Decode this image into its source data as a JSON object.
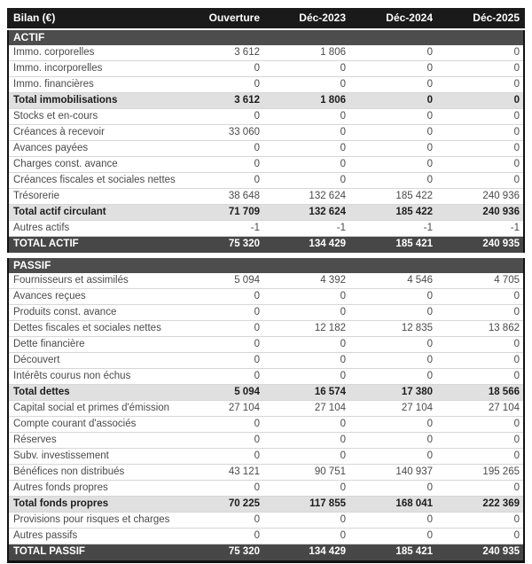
{
  "colors": {
    "header_bg": "#1a1a1a",
    "section_bg": "#4d4d4d",
    "total_bg": "#474747",
    "subtotal_bg": "#e0e0e0",
    "row_border": "#d6d6d6",
    "text": "#4a4a4a"
  },
  "table": {
    "title": "Bilan (€)",
    "columns": [
      "Ouverture",
      "Déc-2023",
      "Déc-2024",
      "Déc-2025"
    ],
    "sections": [
      {
        "name": "ACTIF",
        "rows": [
          {
            "label": "Immo. corporelles",
            "type": "data",
            "values": [
              "3 612",
              "1 806",
              "0",
              "0"
            ]
          },
          {
            "label": "Immo. incorporelles",
            "type": "data",
            "values": [
              "0",
              "0",
              "0",
              "0"
            ]
          },
          {
            "label": "Immo. financières",
            "type": "data",
            "values": [
              "0",
              "0",
              "0",
              "0"
            ]
          },
          {
            "label": "Total immobilisations",
            "type": "subtotal",
            "values": [
              "3 612",
              "1 806",
              "0",
              "0"
            ]
          },
          {
            "label": "Stocks et en-cours",
            "type": "data",
            "values": [
              "0",
              "0",
              "0",
              "0"
            ]
          },
          {
            "label": "Créances à recevoir",
            "type": "data",
            "values": [
              "33 060",
              "0",
              "0",
              "0"
            ]
          },
          {
            "label": "Avances payées",
            "type": "data",
            "values": [
              "0",
              "0",
              "0",
              "0"
            ]
          },
          {
            "label": "Charges const. avance",
            "type": "data",
            "values": [
              "0",
              "0",
              "0",
              "0"
            ]
          },
          {
            "label": "Créances fiscales et sociales nettes",
            "type": "data",
            "values": [
              "0",
              "0",
              "0",
              "0"
            ]
          },
          {
            "label": "Trésorerie",
            "type": "data",
            "values": [
              "38 648",
              "132 624",
              "185 422",
              "240 936"
            ]
          },
          {
            "label": "Total actif circulant",
            "type": "subtotal",
            "values": [
              "71 709",
              "132 624",
              "185 422",
              "240 936"
            ]
          },
          {
            "label": "Autres actifs",
            "type": "data",
            "values": [
              "-1",
              "-1",
              "-1",
              "-1"
            ]
          },
          {
            "label": "TOTAL ACTIF",
            "type": "total",
            "values": [
              "75 320",
              "134 429",
              "185 421",
              "240 935"
            ]
          }
        ]
      },
      {
        "name": "PASSIF",
        "rows": [
          {
            "label": "Fournisseurs et assimilés",
            "type": "data",
            "values": [
              "5 094",
              "4 392",
              "4 546",
              "4 705"
            ]
          },
          {
            "label": "Avances reçues",
            "type": "data",
            "values": [
              "0",
              "0",
              "0",
              "0"
            ]
          },
          {
            "label": "Produits const. avance",
            "type": "data",
            "values": [
              "0",
              "0",
              "0",
              "0"
            ]
          },
          {
            "label": "Dettes fiscales et sociales nettes",
            "type": "data",
            "values": [
              "0",
              "12 182",
              "12 835",
              "13 862"
            ]
          },
          {
            "label": "Dette financière",
            "type": "data",
            "values": [
              "0",
              "0",
              "0",
              "0"
            ]
          },
          {
            "label": "Découvert",
            "type": "data",
            "values": [
              "0",
              "0",
              "0",
              "0"
            ]
          },
          {
            "label": "Intérêts courus non échus",
            "type": "data",
            "values": [
              "0",
              "0",
              "0",
              "0"
            ]
          },
          {
            "label": "Total dettes",
            "type": "subtotal",
            "values": [
              "5 094",
              "16 574",
              "17 380",
              "18 566"
            ]
          },
          {
            "label": "Capital social et primes d'émission",
            "type": "data",
            "values": [
              "27 104",
              "27 104",
              "27 104",
              "27 104"
            ]
          },
          {
            "label": "Compte courant d'associés",
            "type": "data",
            "values": [
              "0",
              "0",
              "0",
              "0"
            ]
          },
          {
            "label": "Réserves",
            "type": "data",
            "values": [
              "0",
              "0",
              "0",
              "0"
            ]
          },
          {
            "label": "Subv. investissement",
            "type": "data",
            "values": [
              "0",
              "0",
              "0",
              "0"
            ]
          },
          {
            "label": "Bénéfices non distribués",
            "type": "data",
            "values": [
              "43 121",
              "90 751",
              "140 937",
              "195 265"
            ]
          },
          {
            "label": "Autres fonds propres",
            "type": "data",
            "values": [
              "0",
              "0",
              "0",
              "0"
            ]
          },
          {
            "label": "Total fonds propres",
            "type": "subtotal",
            "values": [
              "70 225",
              "117 855",
              "168 041",
              "222 369"
            ]
          },
          {
            "label": "Provisions pour risques et charges",
            "type": "data",
            "values": [
              "0",
              "0",
              "0",
              "0"
            ]
          },
          {
            "label": "Autres passifs",
            "type": "data",
            "values": [
              "0",
              "0",
              "0",
              "0"
            ]
          },
          {
            "label": "TOTAL PASSIF",
            "type": "total",
            "values": [
              "75 320",
              "134 429",
              "185 421",
              "240 935"
            ]
          }
        ]
      }
    ]
  }
}
